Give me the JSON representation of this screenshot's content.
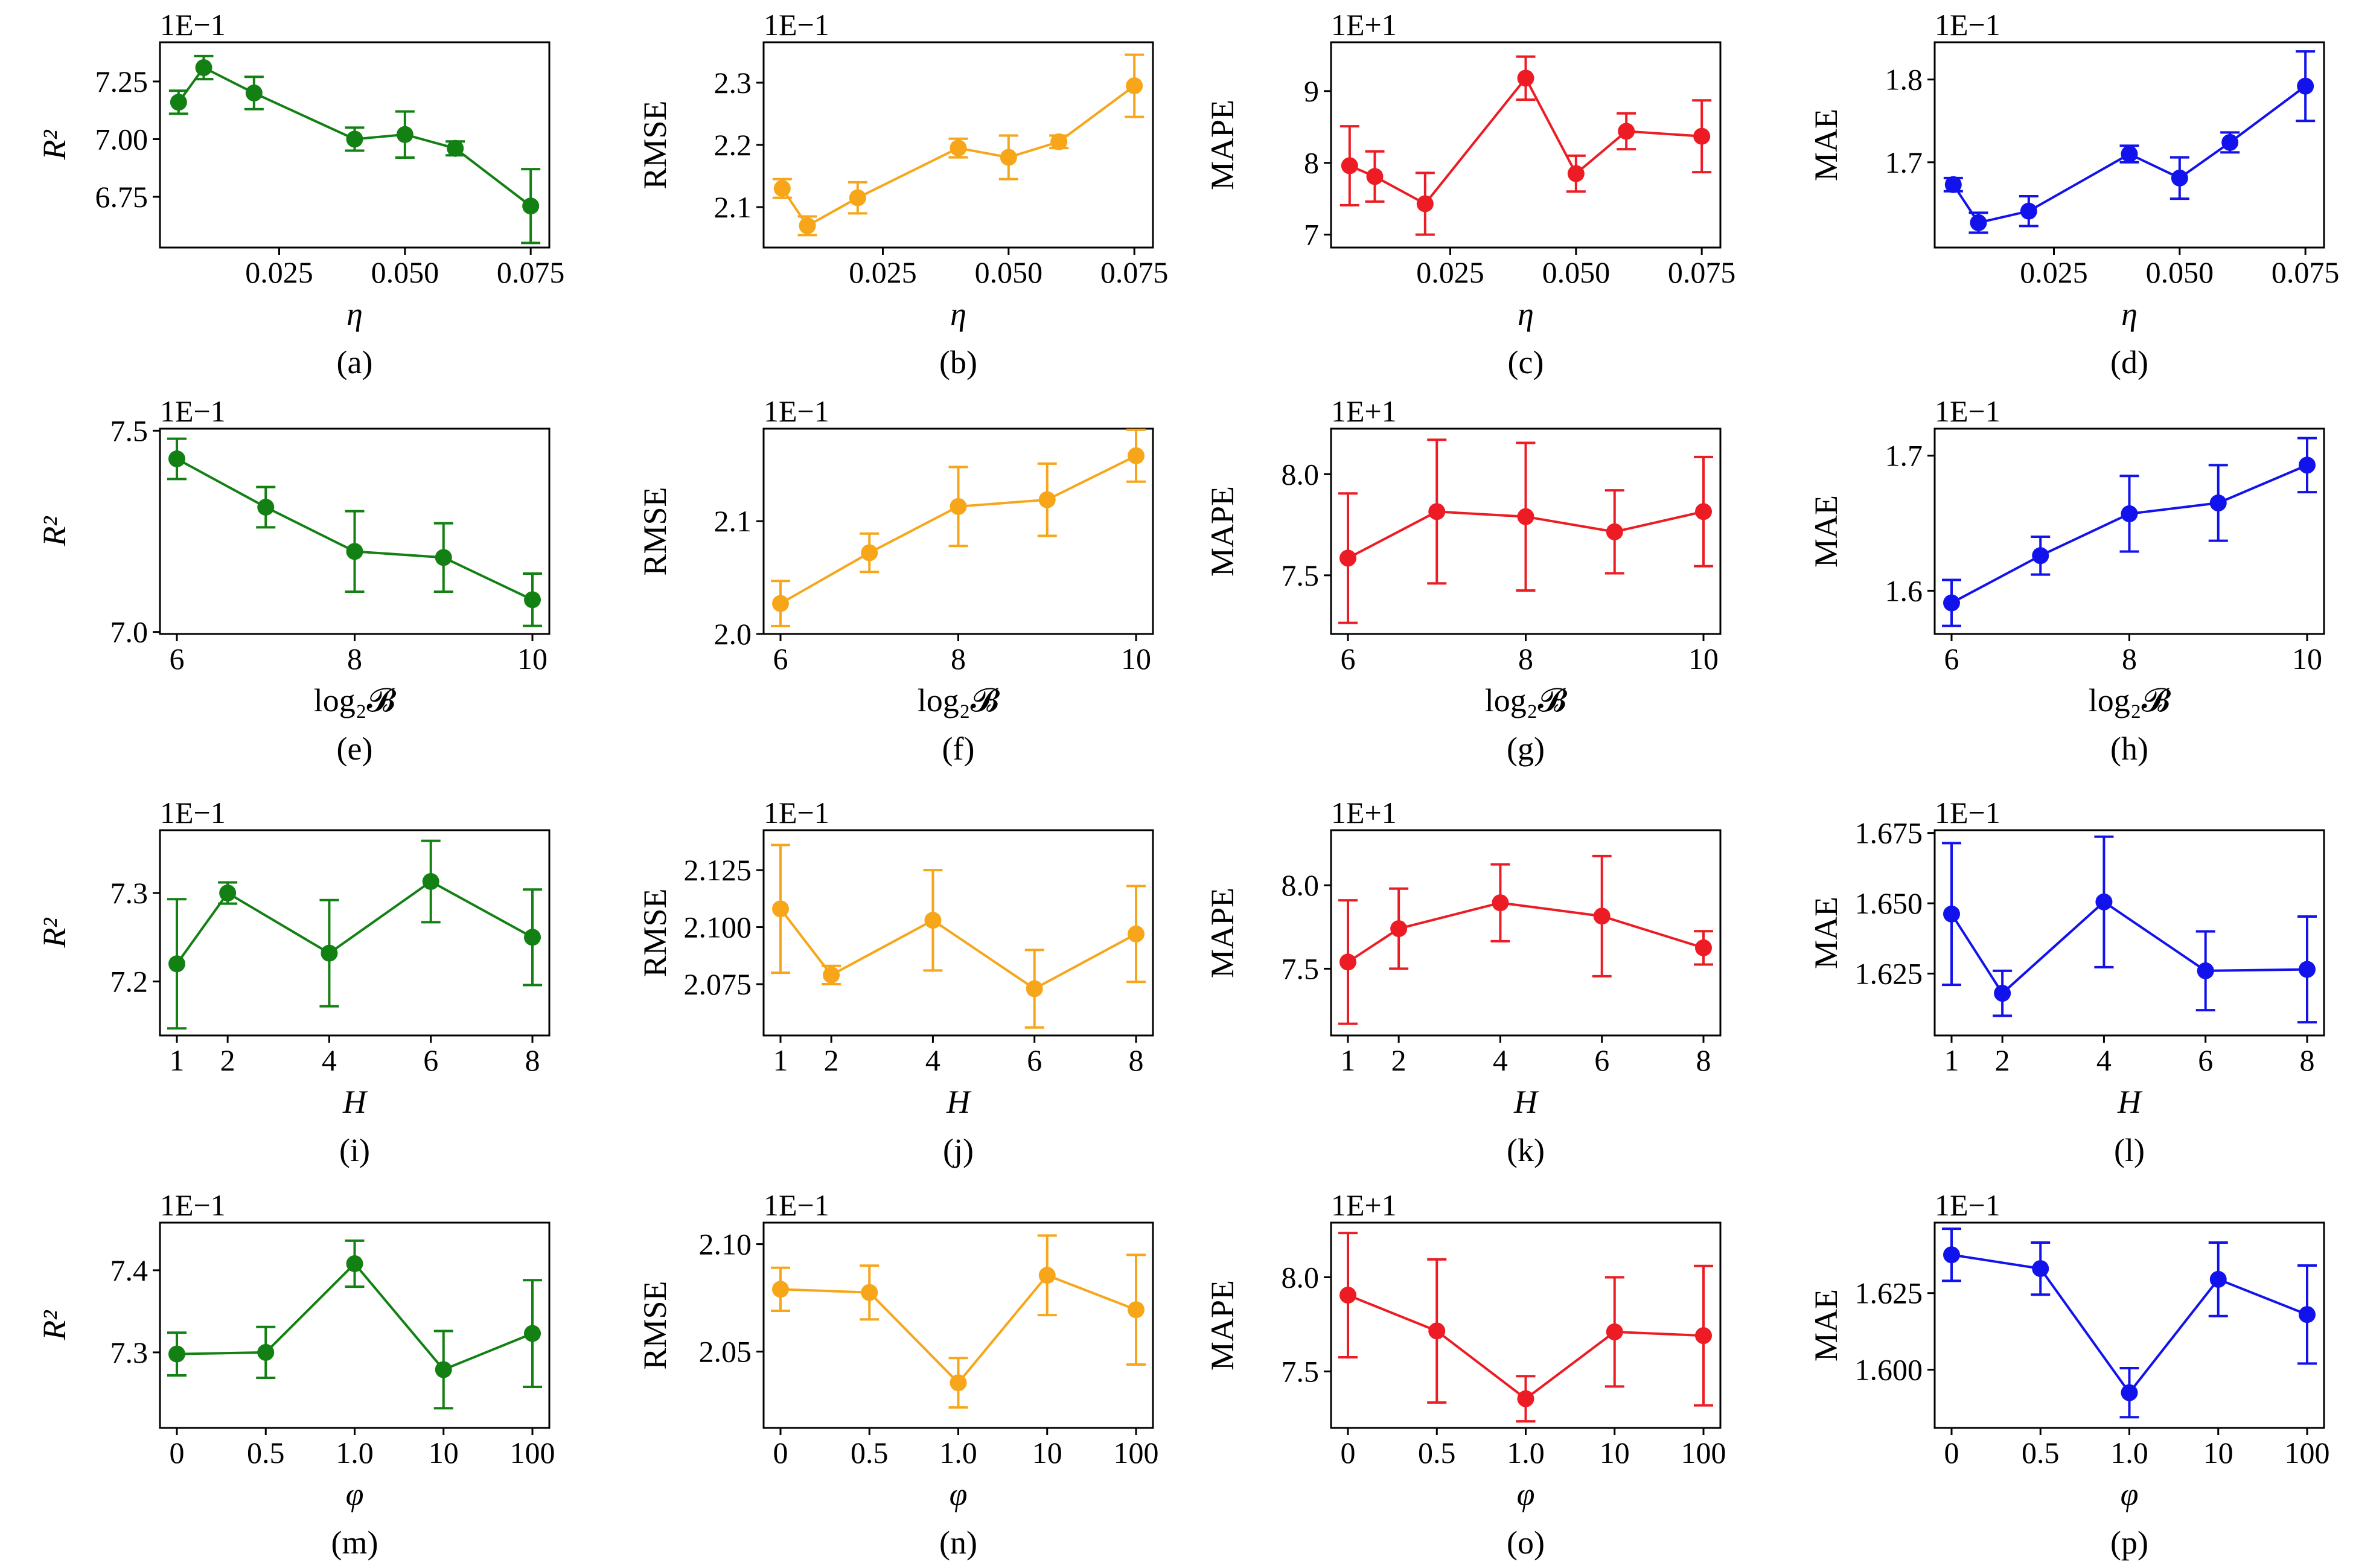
{
  "colors": {
    "r2": "#138013",
    "rmse": "#F7A61A",
    "mape": "#ED1C24",
    "mae": "#1212EC"
  },
  "chart_data": [
    {
      "type": "line",
      "caption": "(a)",
      "xlabel": "η",
      "ylabel": "R²",
      "scale_label": "1E−1",
      "x": [
        0.005,
        0.01,
        0.02,
        0.04,
        0.05,
        0.06,
        0.075
      ],
      "values": [
        7.16,
        7.31,
        7.2,
        7.0,
        7.02,
        6.96,
        6.71
      ],
      "errors": [
        0.05,
        0.05,
        0.07,
        0.05,
        0.1,
        0.03,
        0.16
      ],
      "xticks": [
        "0.025",
        "0.050",
        "0.075"
      ],
      "yticks": [
        "6.75",
        "7.00",
        "7.25"
      ],
      "ylim": [
        6.53,
        7.42
      ]
    },
    {
      "type": "line",
      "caption": "(b)",
      "xlabel": "η",
      "ylabel": "RMSE",
      "scale_label": "1E−1",
      "x": [
        0.005,
        0.01,
        0.02,
        0.04,
        0.05,
        0.06,
        0.075
      ],
      "values": [
        2.13,
        2.07,
        2.115,
        2.195,
        2.18,
        2.205,
        2.295
      ],
      "errors": [
        0.015,
        0.015,
        0.025,
        0.015,
        0.035,
        0.01,
        0.05
      ],
      "xticks": [
        "0.025",
        "0.050",
        "0.075"
      ],
      "yticks": [
        "2.1",
        "2.2",
        "2.3"
      ],
      "ylim": [
        2.035,
        2.365
      ]
    },
    {
      "type": "line",
      "caption": "(c)",
      "xlabel": "η",
      "ylabel": "MAPE",
      "scale_label": "1E+1",
      "x": [
        0.005,
        0.01,
        0.02,
        0.04,
        0.05,
        0.06,
        0.075
      ],
      "values": [
        7.96,
        7.81,
        7.43,
        9.18,
        7.85,
        8.44,
        8.37
      ],
      "errors": [
        0.55,
        0.35,
        0.43,
        0.3,
        0.25,
        0.25,
        0.5
      ],
      "xticks": [
        "0.025",
        "0.050",
        "0.075"
      ],
      "yticks": [
        "7",
        "8",
        "9"
      ],
      "ylim": [
        6.82,
        9.68
      ]
    },
    {
      "type": "line",
      "caption": "(d)",
      "xlabel": "η",
      "ylabel": "MAE",
      "scale_label": "1E−1",
      "x": [
        0.005,
        0.01,
        0.02,
        0.04,
        0.05,
        0.06,
        0.075
      ],
      "values": [
        1.673,
        1.627,
        1.641,
        1.71,
        1.681,
        1.724,
        1.792
      ],
      "errors": [
        0.008,
        0.012,
        0.018,
        0.01,
        0.025,
        0.012,
        0.042
      ],
      "xticks": [
        "0.025",
        "0.050",
        "0.075"
      ],
      "yticks": [
        "1.7",
        "1.8"
      ],
      "ylim": [
        1.597,
        1.845
      ]
    },
    {
      "type": "line",
      "caption": "(e)",
      "xlabel": "log₂𝓑",
      "ylabel": "R²",
      "scale_label": "1E−1",
      "x": [
        6,
        7,
        8,
        9,
        10
      ],
      "values": [
        7.43,
        7.31,
        7.2,
        7.185,
        7.08
      ],
      "errors": [
        0.05,
        0.05,
        0.1,
        0.085,
        0.065
      ],
      "xticks": [
        "6",
        "8",
        "10"
      ],
      "yticks": [
        "7.0",
        "7.5"
      ],
      "ylim": [
        6.995,
        7.505
      ]
    },
    {
      "type": "line",
      "caption": "(f)",
      "xlabel": "log₂𝓑",
      "ylabel": "RMSE",
      "scale_label": "1E−1",
      "x": [
        6,
        7,
        8,
        9,
        10
      ],
      "values": [
        2.027,
        2.072,
        2.113,
        2.119,
        2.158
      ],
      "errors": [
        0.02,
        0.017,
        0.035,
        0.032,
        0.023
      ],
      "xticks": [
        "6",
        "8",
        "10"
      ],
      "yticks": [
        "2.0",
        "2.1"
      ],
      "ylim": [
        2.0,
        2.182
      ]
    },
    {
      "type": "line",
      "caption": "(g)",
      "xlabel": "log₂𝓑",
      "ylabel": "MAPE",
      "scale_label": "1E+1",
      "x": [
        6,
        7,
        8,
        9,
        10
      ],
      "values": [
        7.585,
        7.815,
        7.79,
        7.715,
        7.815
      ],
      "errors": [
        0.32,
        0.355,
        0.365,
        0.205,
        0.27
      ],
      "xticks": [
        "6",
        "8",
        "10"
      ],
      "yticks": [
        "7.5",
        "8.0"
      ],
      "ylim": [
        7.21,
        8.225
      ]
    },
    {
      "type": "line",
      "caption": "(h)",
      "xlabel": "log₂𝓑",
      "ylabel": "MAE",
      "scale_label": "1E−1",
      "x": [
        6,
        7,
        8,
        9,
        10
      ],
      "values": [
        1.591,
        1.626,
        1.657,
        1.665,
        1.693
      ],
      "errors": [
        0.017,
        0.014,
        0.028,
        0.028,
        0.02
      ],
      "xticks": [
        "6",
        "8",
        "10"
      ],
      "yticks": [
        "1.6",
        "1.7"
      ],
      "ylim": [
        1.568,
        1.72
      ]
    },
    {
      "type": "line",
      "caption": "(i)",
      "xlabel": "H",
      "ylabel": "R²",
      "scale_label": "1E−1",
      "x": [
        1,
        2,
        4,
        6,
        8
      ],
      "values": [
        7.22,
        7.3,
        7.232,
        7.313,
        7.25
      ],
      "errors": [
        0.073,
        0.012,
        0.06,
        0.046,
        0.054
      ],
      "xticks": [
        "1",
        "2",
        "4",
        "6",
        "8"
      ],
      "yticks": [
        "7.2",
        "7.3"
      ],
      "ylim": [
        7.139,
        7.371
      ]
    },
    {
      "type": "line",
      "caption": "(j)",
      "xlabel": "H",
      "ylabel": "RMSE",
      "scale_label": "1E−1",
      "x": [
        1,
        2,
        4,
        6,
        8
      ],
      "values": [
        2.108,
        2.079,
        2.103,
        2.073,
        2.097
      ],
      "errors": [
        0.028,
        0.004,
        0.022,
        0.017,
        0.021
      ],
      "xticks": [
        "1",
        "2",
        "4",
        "6",
        "8"
      ],
      "yticks": [
        "2.075",
        "2.100",
        "2.125"
      ],
      "ylim": [
        2.0525,
        2.1425
      ]
    },
    {
      "type": "line",
      "caption": "(k)",
      "xlabel": "H",
      "ylabel": "MAPE",
      "scale_label": "1E+1",
      "x": [
        1,
        2,
        4,
        6,
        8
      ],
      "values": [
        7.54,
        7.74,
        7.895,
        7.815,
        7.625
      ],
      "errors": [
        0.37,
        0.24,
        0.23,
        0.36,
        0.1
      ],
      "xticks": [
        "1",
        "2",
        "4",
        "6",
        "8"
      ],
      "yticks": [
        "7.5",
        "8.0"
      ],
      "ylim": [
        7.1,
        8.33
      ]
    },
    {
      "type": "line",
      "caption": "(l)",
      "xlabel": "H",
      "ylabel": "MAE",
      "scale_label": "1E−1",
      "x": [
        1,
        2,
        4,
        6,
        8
      ],
      "values": [
        1.6462,
        1.618,
        1.6505,
        1.626,
        1.6265
      ],
      "errors": [
        0.0252,
        0.008,
        0.0232,
        0.014,
        0.0188
      ],
      "xticks": [
        "1",
        "2",
        "4",
        "6",
        "8"
      ],
      "yticks": [
        "1.625",
        "1.650",
        "1.675"
      ],
      "ylim": [
        1.603,
        1.676
      ]
    },
    {
      "type": "line",
      "caption": "(m)",
      "xlabel": "φ",
      "ylabel": "R²",
      "scale_label": "1E−1",
      "x": [
        "0",
        "0.5",
        "1.0",
        "10",
        "100"
      ],
      "values": [
        7.298,
        7.3,
        7.408,
        7.279,
        7.323
      ],
      "errors": [
        0.026,
        0.031,
        0.028,
        0.047,
        0.065
      ],
      "xticks": [
        "0",
        "0.5",
        "1.0",
        "10",
        "100"
      ],
      "yticks": [
        "7.3",
        "7.4"
      ],
      "ylim": [
        7.208,
        7.458
      ]
    },
    {
      "type": "line",
      "caption": "(n)",
      "xlabel": "φ",
      "ylabel": "RMSE",
      "scale_label": "1E−1",
      "x": [
        "0",
        "0.5",
        "1.0",
        "10",
        "100"
      ],
      "values": [
        2.079,
        2.0775,
        2.0355,
        2.0855,
        2.0695
      ],
      "errors": [
        0.01,
        0.0125,
        0.0115,
        0.0185,
        0.0255
      ],
      "xticks": [
        "0",
        "0.5",
        "1.0",
        "10",
        "100"
      ],
      "yticks": [
        "2.05",
        "2.10"
      ],
      "ylim": [
        2.0145,
        2.11
      ]
    },
    {
      "type": "line",
      "caption": "(o)",
      "xlabel": "φ",
      "ylabel": "MAPE",
      "scale_label": "1E+1",
      "x": [
        "0",
        "0.5",
        "1.0",
        "10",
        "100"
      ],
      "values": [
        7.905,
        7.715,
        7.355,
        7.71,
        7.69
      ],
      "errors": [
        0.33,
        0.38,
        0.12,
        0.29,
        0.37
      ],
      "xticks": [
        "0",
        "0.5",
        "1.0",
        "10",
        "100"
      ],
      "yticks": [
        "7.5",
        "8.0"
      ],
      "ylim": [
        7.2,
        8.29
      ]
    },
    {
      "type": "line",
      "caption": "(p)",
      "xlabel": "φ",
      "ylabel": "MAE",
      "scale_label": "1E−1",
      "x": [
        "0",
        "0.5",
        "1.0",
        "10",
        "100"
      ],
      "values": [
        1.6375,
        1.633,
        1.5925,
        1.6295,
        1.618
      ],
      "errors": [
        0.0085,
        0.0085,
        0.008,
        0.012,
        0.016
      ],
      "xticks": [
        "0",
        "0.5",
        "1.0",
        "10",
        "100"
      ],
      "yticks": [
        "1.600",
        "1.625"
      ],
      "ylim": [
        1.581,
        1.648
      ]
    }
  ]
}
